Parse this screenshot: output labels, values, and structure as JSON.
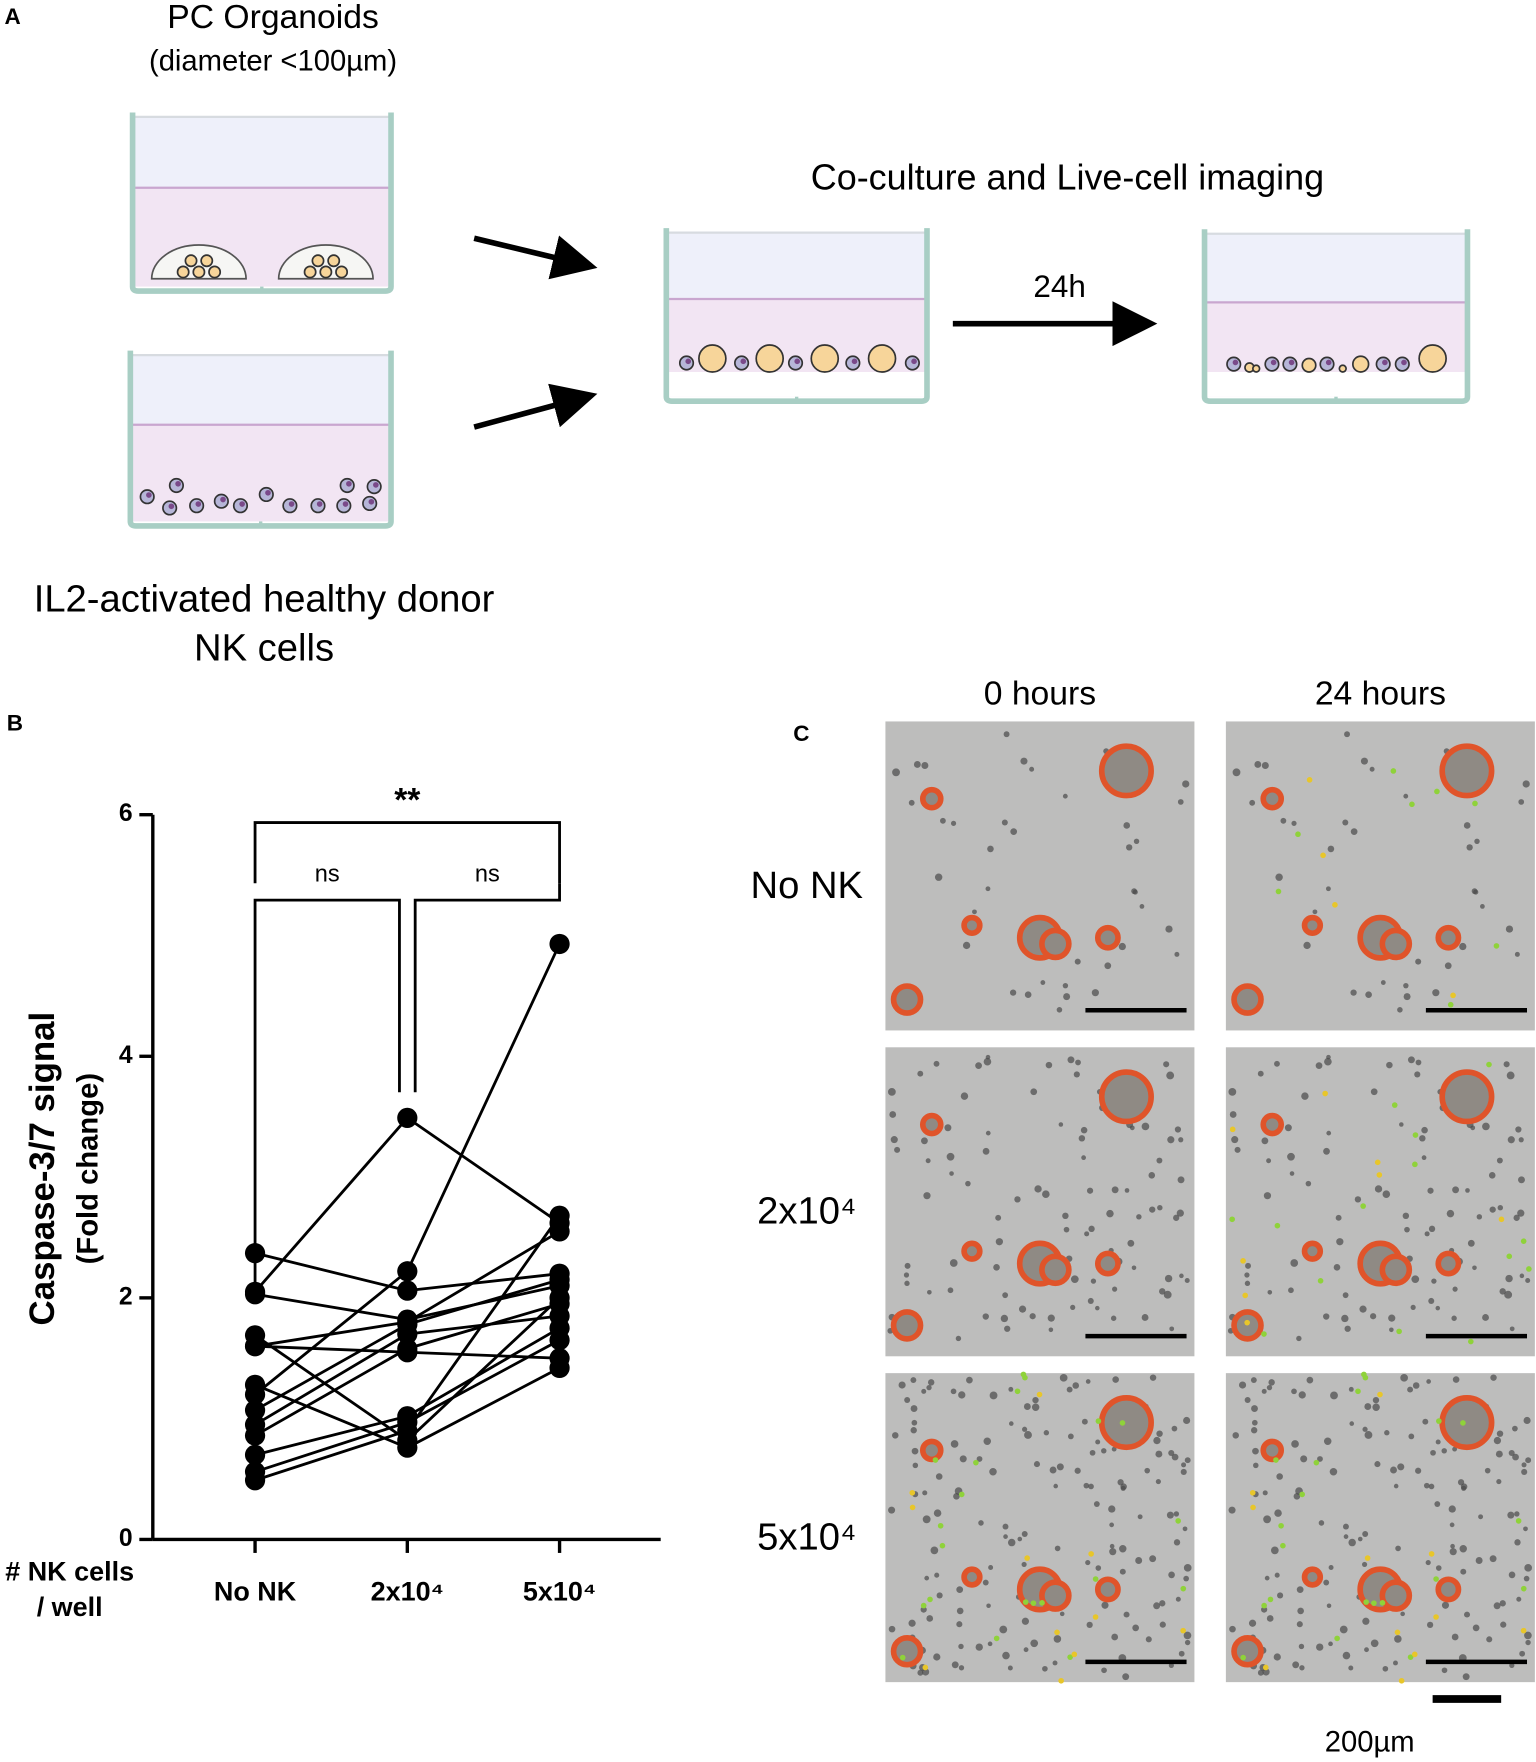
{
  "panel_a": {
    "label": "A",
    "organoids_title": "PC Organoids",
    "organoids_subtitle": "(diameter <100µm)",
    "coculture_title": "Co-culture and Live-cell imaging",
    "time_label": "24h",
    "nk_title_line1": "IL2-activated healthy donor",
    "nk_title_line2": "NK cells"
  },
  "chart_data": {
    "type": "paired-line",
    "panel_label": "B",
    "ylabel": "Caspase-3/7 signal",
    "ylabel_sub": "(Fold change)",
    "xlabel_line1": "# NK cells",
    "xlabel_line2": "/ well",
    "categories": [
      "No NK",
      "2x10⁴",
      "5x10⁴"
    ],
    "color": "#000000",
    "ylim": [
      0,
      6
    ],
    "yticks": [
      0,
      2,
      4,
      6
    ],
    "series": [
      {
        "values": [
          2.05,
          3.49,
          2.62
        ]
      },
      {
        "values": [
          1.2,
          2.22,
          4.93
        ]
      },
      {
        "values": [
          2.37,
          2.06,
          2.2
        ]
      },
      {
        "values": [
          2.03,
          1.82,
          2.1
        ]
      },
      {
        "values": [
          1.69,
          0.82,
          2.0
        ]
      },
      {
        "values": [
          1.6,
          1.55,
          1.5
        ]
      },
      {
        "values": [
          1.28,
          0.76,
          1.42
        ]
      },
      {
        "values": [
          1.07,
          1.78,
          2.15
        ]
      },
      {
        "values": [
          0.95,
          1.7,
          1.85
        ]
      },
      {
        "values": [
          0.86,
          1.58,
          1.95
        ]
      },
      {
        "values": [
          0.7,
          1.02,
          1.75
        ]
      },
      {
        "values": [
          0.56,
          0.97,
          1.65
        ]
      },
      {
        "values": [
          0.49,
          0.9,
          2.68
        ]
      },
      {
        "values": [
          1.6,
          1.8,
          2.55
        ]
      }
    ],
    "annotations": [
      {
        "text": "**",
        "from": 0,
        "to": 2
      },
      {
        "text": "ns",
        "from": 0,
        "to": 1
      },
      {
        "text": "ns",
        "from": 1,
        "to": 2
      }
    ]
  },
  "panel_c": {
    "label": "C",
    "columns": [
      "0 hours",
      "24 hours"
    ],
    "rows": [
      "No NK",
      "2x10⁴",
      "5x10⁴"
    ],
    "scale_label": "200µm"
  }
}
